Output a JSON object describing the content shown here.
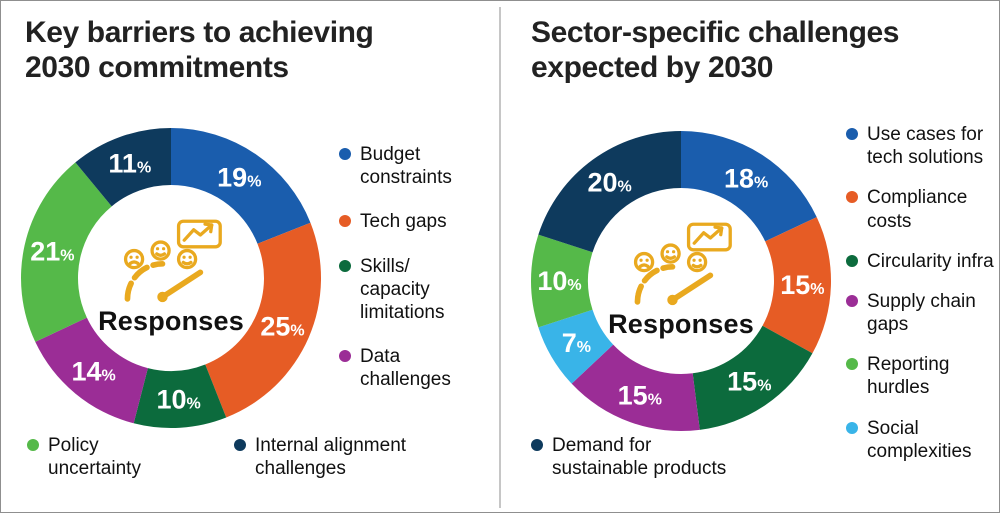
{
  "icon_color": "#E9A91F",
  "chart_data": [
    {
      "type": "donut",
      "title": "Key barriers to achieving\n2030 commitments",
      "center_label": "Responses",
      "center_icon": "gauge-with-smiley-faces-and-trend-chart-icon",
      "unit": "%",
      "start_angle_deg": 0,
      "direction": "clockwise",
      "legend_position": "right column and bottom row",
      "segments": [
        {
          "label": "Budget constraints",
          "value": 19,
          "color": "#1A5DAD"
        },
        {
          "label": "Tech gaps",
          "value": 25,
          "color": "#E65C25"
        },
        {
          "label": "Skills/ capacity limitations",
          "value": 10,
          "color": "#0C6B3D"
        },
        {
          "label": "Data challenges",
          "value": 14,
          "color": "#9B2D96"
        },
        {
          "label": "Policy uncertainty",
          "value": 21,
          "color": "#55B949"
        },
        {
          "label": "Internal alignment challenges",
          "value": 11,
          "color": "#0E3A5D"
        }
      ],
      "legend": {
        "side": [
          0,
          1,
          2,
          3
        ],
        "bottom": [
          4,
          5
        ]
      }
    },
    {
      "type": "donut",
      "title": "Sector-specific challenges\nexpected by 2030",
      "center_label": "Responses",
      "center_icon": "gauge-with-smiley-faces-and-trend-chart-icon",
      "unit": "%",
      "start_angle_deg": 0,
      "direction": "clockwise",
      "legend_position": "right column and bottom row",
      "segments": [
        {
          "label": "Use cases for tech solutions",
          "value": 18,
          "color": "#1A5DAD"
        },
        {
          "label": "Compliance costs",
          "value": 15,
          "color": "#E65C25"
        },
        {
          "label": "Circularity infra",
          "value": 15,
          "color": "#0C6B3D"
        },
        {
          "label": "Supply chain gaps",
          "value": 15,
          "color": "#9B2D96"
        },
        {
          "label": "Social complexities",
          "value": 7,
          "color": "#39B4E8"
        },
        {
          "label": "Reporting hurdles",
          "value": 10,
          "color": "#55B949"
        },
        {
          "label": "Demand for sustainable products",
          "value": 20,
          "color": "#0E3A5D"
        }
      ],
      "legend": {
        "side": [
          0,
          1,
          2,
          3,
          5,
          4
        ],
        "bottom": [
          6
        ]
      }
    }
  ]
}
